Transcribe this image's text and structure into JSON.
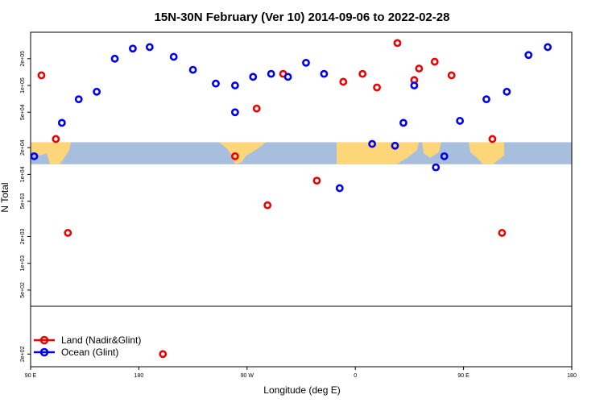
{
  "chart_data": {
    "type": "scatter",
    "title": "15N-30N February (Ver 10)   2014-09-06 to 2022-02-28",
    "xlabel": "Longitude (deg E)",
    "ylabel": "N Total",
    "xlim": [
      90,
      540
    ],
    "ylim_log": [
      350,
      350000
    ],
    "x_ticks": [
      {
        "value": 90,
        "label": "90 E"
      },
      {
        "value": 180,
        "label": "180"
      },
      {
        "value": 270,
        "label": "90 W"
      },
      {
        "value": 360,
        "label": "0"
      },
      {
        "value": 450,
        "label": "90 E"
      },
      {
        "value": 540,
        "label": "180"
      }
    ],
    "y_ticks": [
      {
        "value": 200,
        "label": "2e+02"
      },
      {
        "value": 500,
        "label": "5e+02"
      },
      {
        "value": 1000,
        "label": "1e+03"
      },
      {
        "value": 2000,
        "label": "2e+03"
      },
      {
        "value": 5000,
        "label": "5e+03"
      },
      {
        "value": 10000,
        "label": "1e+04"
      },
      {
        "value": 20000,
        "label": "2e+04"
      },
      {
        "value": 50000,
        "label": "5e+04"
      },
      {
        "value": 100000,
        "label": "1e+05"
      },
      {
        "value": 200000,
        "label": "2e+05"
      }
    ],
    "lower_panel_ylim_log": [
      150,
      700
    ],
    "series": [
      {
        "name": "Land (Nadir&Glint)",
        "color": "#ee0000",
        "points": [
          [
            99,
            130000
          ],
          [
            111,
            25000
          ],
          [
            121,
            2200
          ],
          [
            278,
            55000
          ],
          [
            300,
            135000
          ],
          [
            260,
            16000
          ],
          [
            287,
            4500
          ],
          [
            328,
            8500
          ],
          [
            350,
            110000
          ],
          [
            366,
            135000
          ],
          [
            378,
            95000
          ],
          [
            395,
            300000
          ],
          [
            409,
            115000
          ],
          [
            413,
            155000
          ],
          [
            426,
            185000
          ],
          [
            440,
            130000
          ],
          [
            474,
            25000
          ],
          [
            482,
            2200
          ]
        ]
      },
      {
        "name": "Ocean (Glint)",
        "color": "#0000ee",
        "points": [
          [
            93,
            16000
          ],
          [
            116,
            38000
          ],
          [
            130,
            70000
          ],
          [
            145,
            85000
          ],
          [
            160,
            200000
          ],
          [
            175,
            260000
          ],
          [
            189,
            270000
          ],
          [
            209,
            210000
          ],
          [
            225,
            150000
          ],
          [
            244,
            105000
          ],
          [
            260,
            100000
          ],
          [
            260,
            50000
          ],
          [
            275,
            125000
          ],
          [
            290,
            135000
          ],
          [
            304,
            125000
          ],
          [
            319,
            180000
          ],
          [
            334,
            135000
          ],
          [
            347,
            7000
          ],
          [
            374,
            22000
          ],
          [
            393,
            21000
          ],
          [
            400,
            38000
          ],
          [
            409,
            100000
          ],
          [
            427,
            12000
          ],
          [
            434,
            16000
          ],
          [
            447,
            40000
          ],
          [
            469,
            70000
          ],
          [
            486,
            85000
          ],
          [
            504,
            220000
          ],
          [
            520,
            270000
          ]
        ]
      },
      {
        "name": "Land (Nadir&Glint) lower panel",
        "color": "#ee0000",
        "panel": "lower",
        "points": [
          [
            200,
            200
          ]
        ]
      }
    ],
    "legend": {
      "position": "bottom-left"
    },
    "map_band": {
      "y_low": 13000,
      "y_high": 23000,
      "ocean_color": "#a8bedd",
      "land_color": "#fdd67a"
    }
  }
}
